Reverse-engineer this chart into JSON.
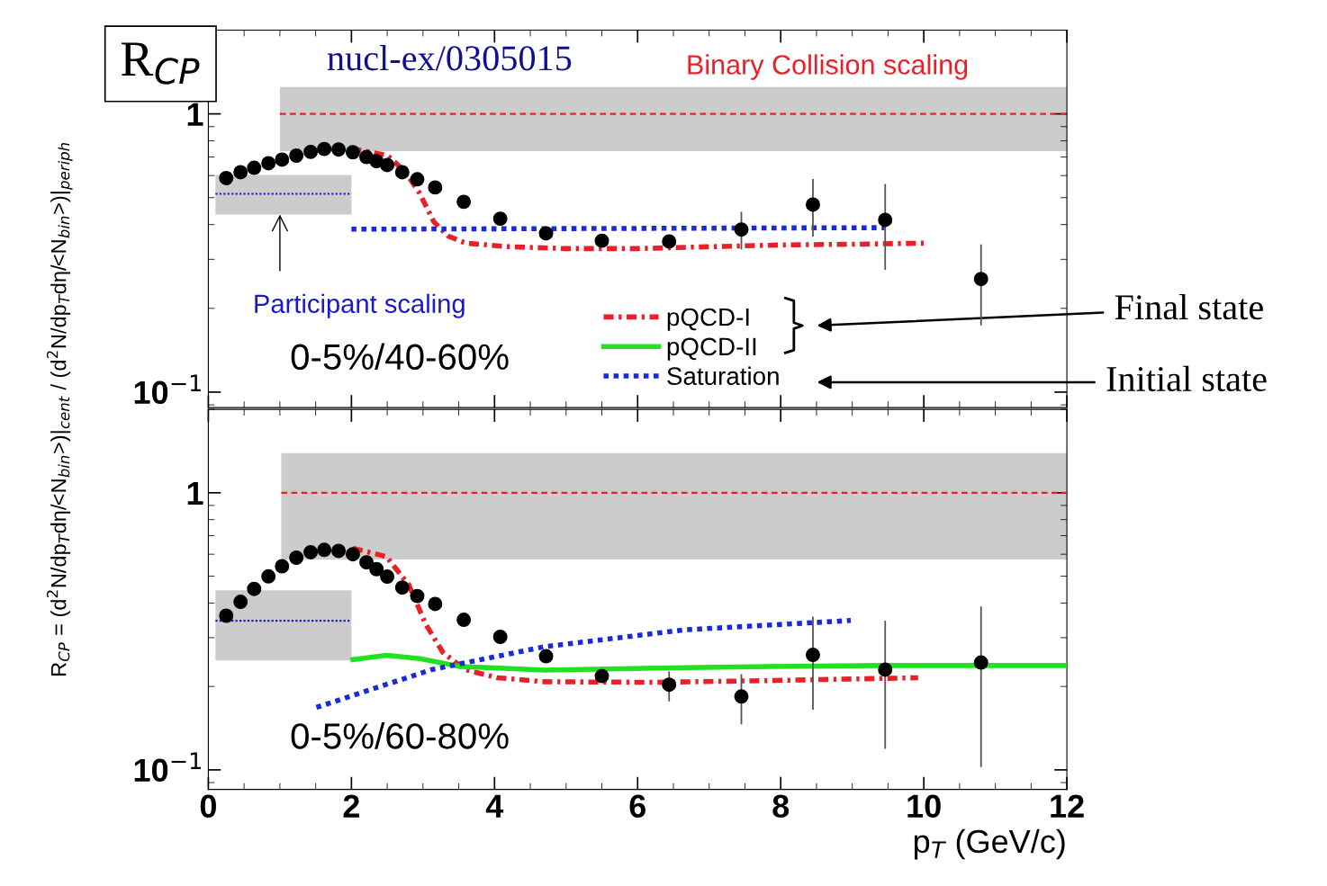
{
  "chart_data": [
    {
      "type": "scatter",
      "title": "R$_{CP}$",
      "ylabel": "R$_{CP}$ = (d$^{2}$N/dp$_{T}$dη/<N$_{bin}$>)|$_{cent}$ / (d$^{2}$N/dp$_{T}$dη/<N$_{bin}$>)|$_{periph}$",
      "xlim": [
        0,
        12
      ],
      "xticks": [
        0,
        2,
        4,
        6,
        8,
        10,
        12
      ],
      "ylim": [
        0.088,
        2
      ],
      "yticks": [
        {
          "value": 0.1,
          "label": "10$^{−1}$"
        },
        1
      ],
      "log": true,
      "tick_labels": "y",
      "annotations": [
        "nucl-ex/0305015",
        "Binary Collision scaling",
        {
          "text": "Participant scaling",
          "x": 1,
          "y": 0.435
        },
        "0-5%/40-60%",
        "Final state",
        "Initial state"
      ],
      "series": [
        {
          "type": "line",
          "x": [
            1,
            12
          ],
          "values": [
            1,
            1
          ],
          "lower": [
            0.735,
            0.735
          ],
          "upper": [
            1.25,
            1.25
          ],
          "color": "#e8202a",
          "line_style": "dashed"
        },
        {
          "type": "line",
          "x": [
            0.1,
            2
          ],
          "values": [
            0.516,
            0.516
          ],
          "lower": [
            0.435,
            0.435
          ],
          "upper": [
            0.603,
            0.603
          ],
          "color": "#1a1acc",
          "line_style": "dotted"
        },
        {
          "type": "line",
          "color": "#e8202a",
          "line_style": "dashdot",
          "x": [
            2,
            2.5,
            2.75,
            2.95,
            3.15,
            3.35,
            3.6,
            4.2,
            5,
            6,
            7,
            8,
            9,
            10
          ],
          "values": [
            0.75,
            0.71,
            0.62,
            0.52,
            0.41,
            0.364,
            0.343,
            0.333,
            0.328,
            0.328,
            0.333,
            0.338,
            0.34,
            0.343
          ]
        },
        {
          "type": "line",
          "color": "#1a2ad6",
          "line_style": "dotted",
          "x": [
            2,
            5,
            9.45
          ],
          "values": [
            0.385,
            0.387,
            0.39
          ]
        },
        {
          "type": "scatter",
          "marker": "circle",
          "color": "#000000",
          "x": [
            0.25,
            0.45,
            0.64,
            0.84,
            1.03,
            1.23,
            1.43,
            1.62,
            1.82,
            2.02,
            2.21,
            2.35,
            2.5,
            2.71,
            2.92,
            3.17,
            3.57,
            4.08,
            4.72,
            5.5,
            6.44,
            7.45,
            8.45,
            9.46,
            10.8
          ],
          "values": [
            0.588,
            0.617,
            0.64,
            0.665,
            0.685,
            0.708,
            0.73,
            0.748,
            0.745,
            0.728,
            0.7,
            0.676,
            0.655,
            0.617,
            0.582,
            0.544,
            0.483,
            0.42,
            0.372,
            0.35,
            0.348,
            0.384,
            0.472,
            0.416,
            0.255
          ],
          "errors": [
            null,
            null,
            null,
            null,
            null,
            null,
            null,
            null,
            null,
            null,
            null,
            null,
            null,
            null,
            null,
            null,
            null,
            null,
            null,
            null,
            null,
            [
              0.328,
              0.442
            ],
            [
              0.365,
              0.58
            ],
            [
              0.277,
              0.556
            ],
            [
              0.175,
              0.337
            ]
          ]
        }
      ]
    },
    {
      "type": "scatter",
      "xlabel": "p$_{T}$ (GeV/c)",
      "xlim": [
        0,
        12
      ],
      "xticks": [
        0,
        2,
        4,
        6,
        8,
        10,
        12
      ],
      "ylim": [
        0.085,
        2
      ],
      "yticks": [
        {
          "value": 0.1,
          "label": "10$^{−1}$"
        },
        1
      ],
      "log": true,
      "legend": "top",
      "annotations": [
        "0-5%/60-80%"
      ],
      "series": [
        {
          "type": "line",
          "x": [
            1.02,
            12
          ],
          "values": [
            1,
            1
          ],
          "lower": [
            0.574,
            0.574
          ],
          "upper": [
            1.39,
            1.39
          ],
          "color": "#e8202a",
          "line_style": "dashed"
        },
        {
          "type": "line",
          "x": [
            0.1,
            2
          ],
          "values": [
            0.345,
            0.345
          ],
          "lower": [
            0.248,
            0.248
          ],
          "upper": [
            0.445,
            0.445
          ],
          "color": "#1a1acc",
          "line_style": "dotted"
        },
        {
          "type": "line",
          "name": "pQCD-I",
          "color": "#e8202a",
          "line_style": "dashdot",
          "x": [
            2.02,
            2.49,
            2.8,
            3.04,
            3.28,
            3.59,
            4.04,
            4.69,
            6.26,
            7.84,
            9.92
          ],
          "values": [
            0.631,
            0.588,
            0.466,
            0.335,
            0.265,
            0.23,
            0.215,
            0.208,
            0.207,
            0.21,
            0.215
          ]
        },
        {
          "type": "line",
          "name": "pQCD-II",
          "color": "#22e022",
          "line_style": "solid",
          "x": [
            2.02,
            2.49,
            2.96,
            3.52,
            4.07,
            4.7,
            6.26,
            7.84,
            9.42,
            12
          ],
          "values": [
            0.25,
            0.259,
            0.252,
            0.236,
            0.233,
            0.229,
            0.233,
            0.236,
            0.238,
            0.238
          ]
        },
        {
          "type": "line",
          "name": "Saturation",
          "color": "#1a2ad6",
          "line_style": "dotted",
          "x": [
            1.51,
            3.12,
            4.69,
            6.65,
            8.98
          ],
          "values": [
            0.168,
            0.23,
            0.278,
            0.32,
            0.346
          ]
        },
        {
          "type": "scatter",
          "marker": "circle",
          "color": "#000000",
          "x": [
            0.25,
            0.45,
            0.64,
            0.84,
            1.03,
            1.23,
            1.43,
            1.62,
            1.82,
            2.02,
            2.21,
            2.35,
            2.5,
            2.71,
            2.92,
            3.17,
            3.57,
            4.08,
            4.72,
            5.5,
            6.44,
            7.45,
            8.45,
            9.46,
            10.8
          ],
          "values": [
            0.36,
            0.404,
            0.45,
            0.499,
            0.543,
            0.583,
            0.61,
            0.622,
            0.617,
            0.6,
            0.561,
            0.53,
            0.498,
            0.455,
            0.424,
            0.397,
            0.348,
            0.302,
            0.257,
            0.218,
            0.203,
            0.184,
            0.26,
            0.23,
            0.244
          ],
          "errors": [
            null,
            null,
            null,
            null,
            null,
            null,
            null,
            null,
            null,
            null,
            null,
            null,
            null,
            null,
            null,
            null,
            null,
            null,
            null,
            null,
            [
              0.178,
              0.225
            ],
            [
              0.147,
              0.22
            ],
            [
              0.166,
              0.355
            ],
            [
              0.12,
              0.343
            ],
            [
              0.103,
              0.386
            ]
          ]
        }
      ]
    }
  ]
}
